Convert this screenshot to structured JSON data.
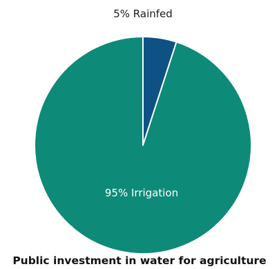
{
  "chart_data": {
    "type": "pie",
    "title": "Public investment in water for agriculture",
    "slices": [
      {
        "name": "Rainfed",
        "value": 5,
        "label": "5% Rainfed",
        "color": "#0e5285"
      },
      {
        "name": "Irrigation",
        "value": 95,
        "label": "95% Irrigation",
        "color": "#0e8a78"
      }
    ]
  }
}
